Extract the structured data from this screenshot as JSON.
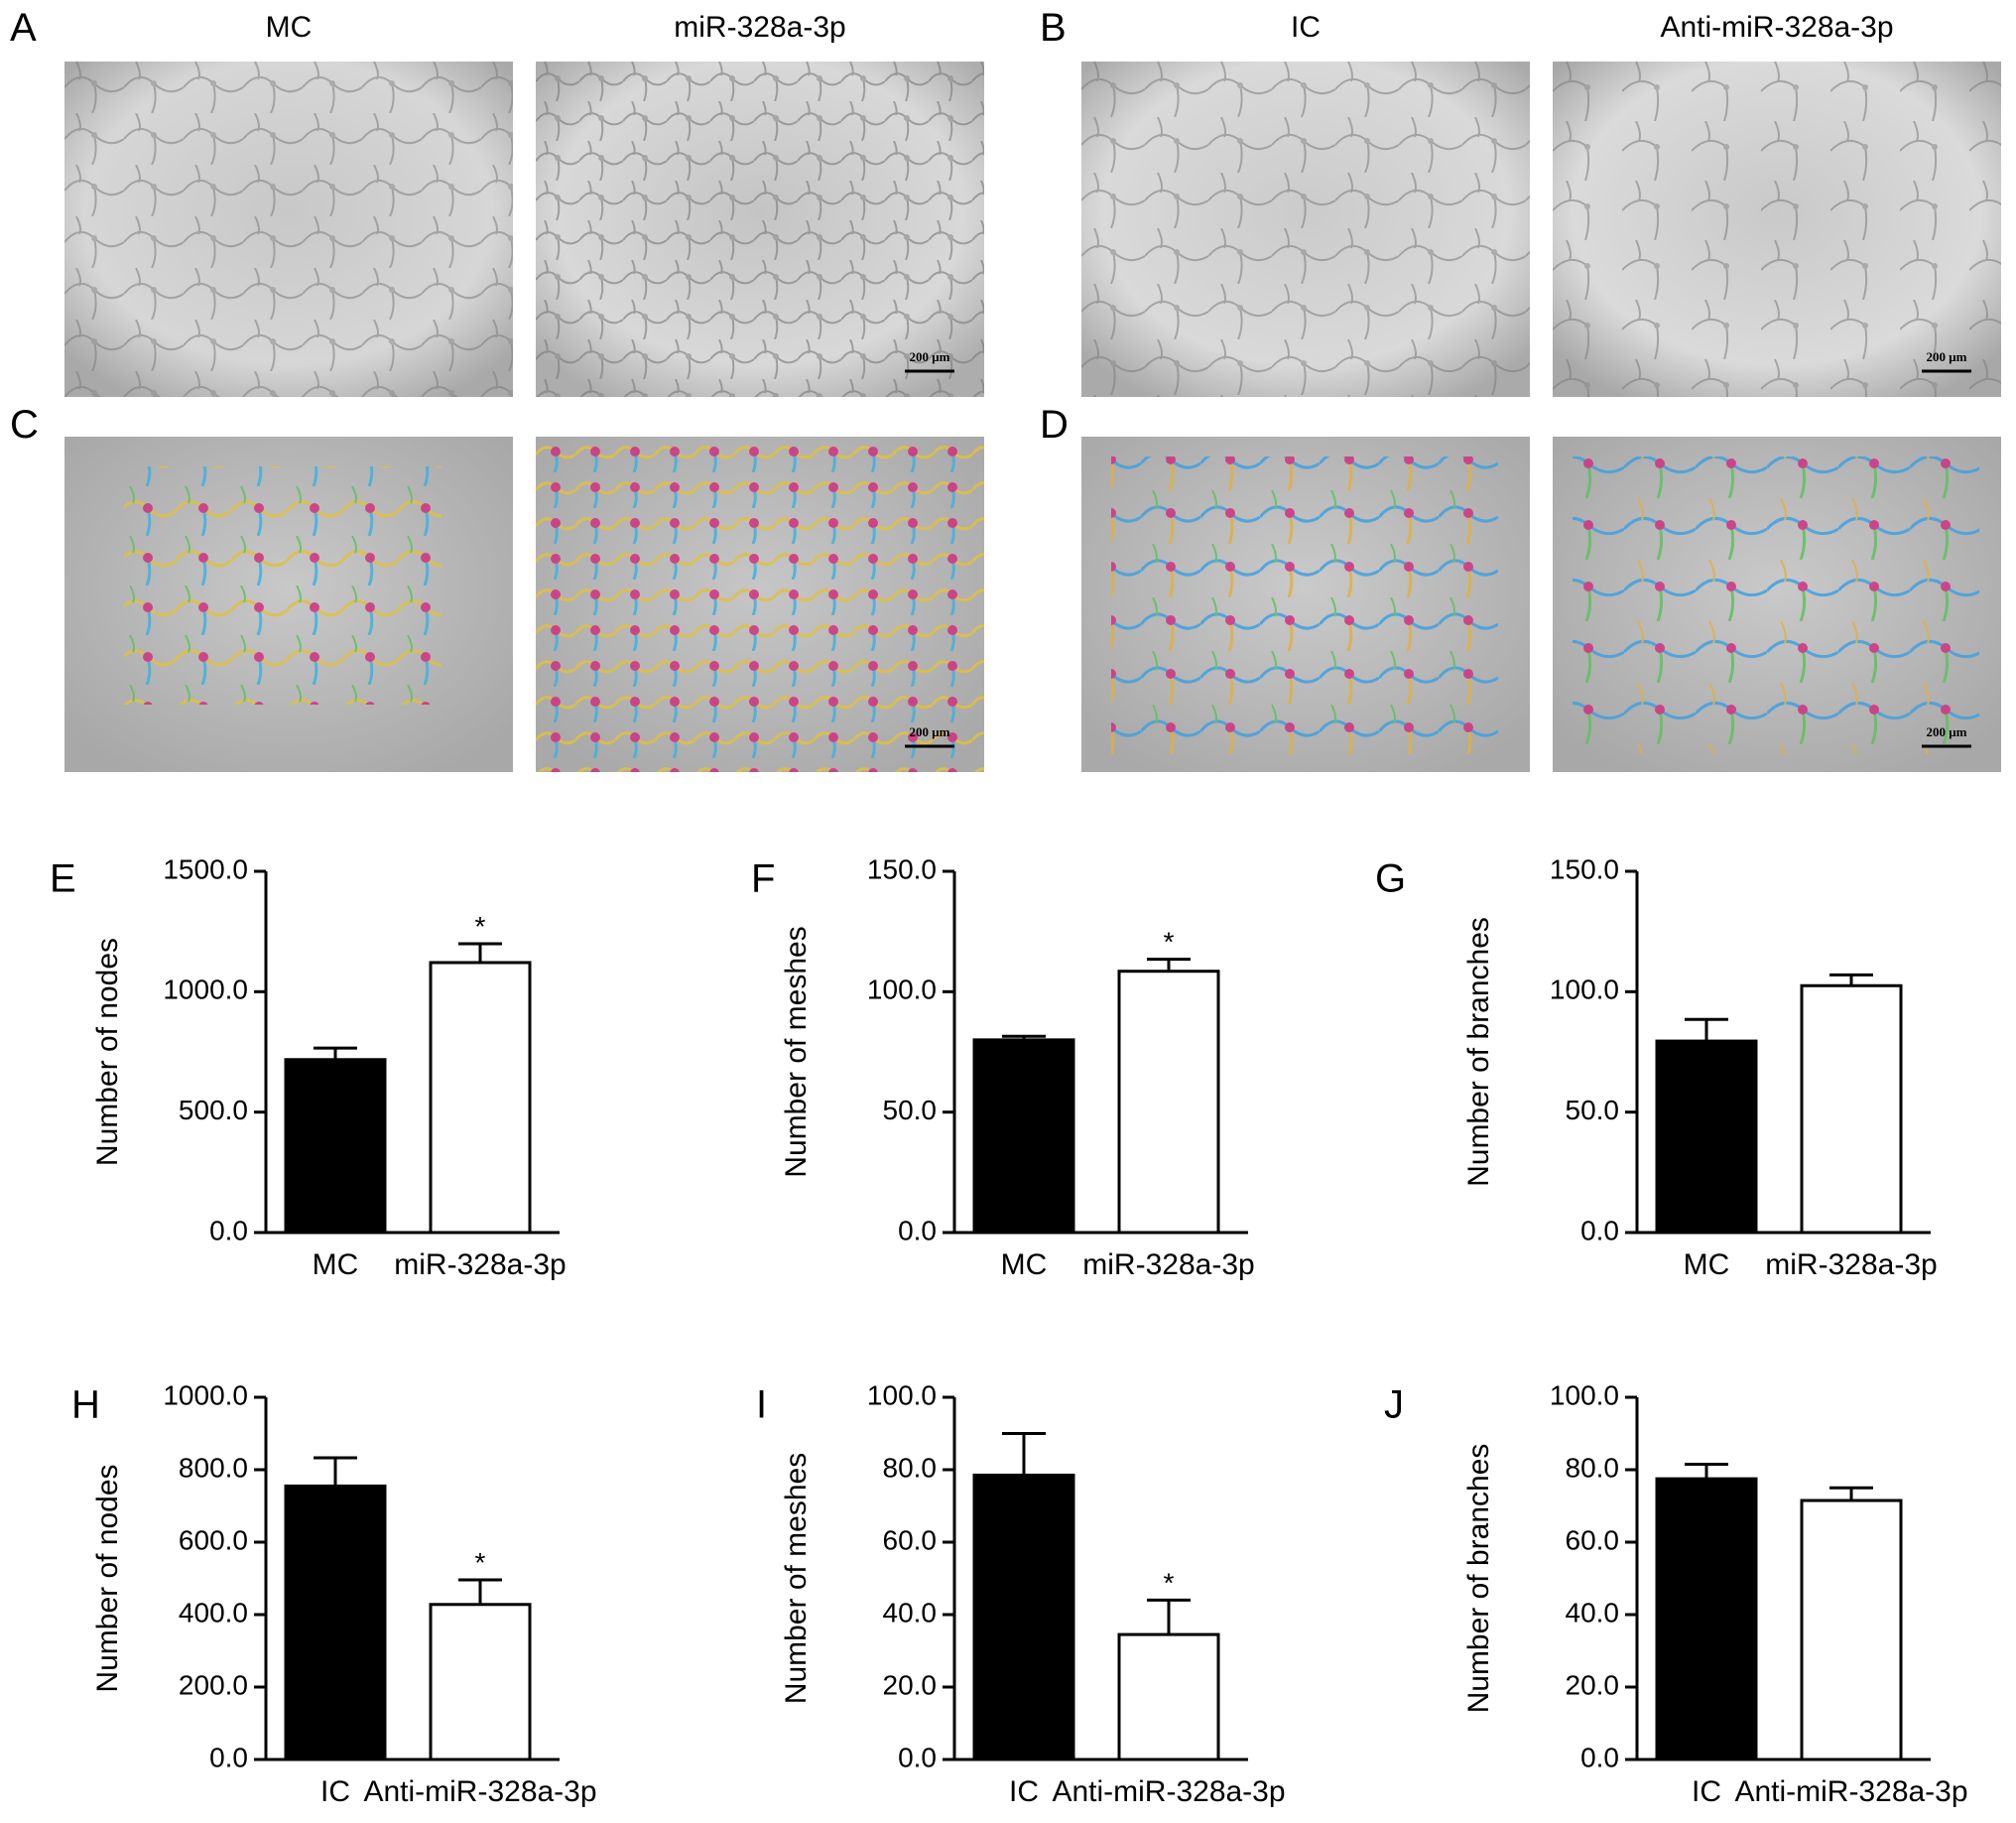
{
  "panel_letters": {
    "A": "A",
    "B": "B",
    "C": "C",
    "D": "D",
    "E": "E",
    "F": "F",
    "G": "G",
    "H": "H",
    "I": "I",
    "J": "J"
  },
  "image_columns": {
    "A": [
      "MC",
      "miR-328a-3p"
    ],
    "B": [
      "IC",
      "Anti-miR-328a-3p"
    ]
  },
  "scale_bar_text": "200 μm",
  "colors": {
    "bar_fill_first": "#000000",
    "bar_fill_second": "#ffffff",
    "edge": "#000000"
  },
  "chart_data": [
    {
      "panel": "E",
      "type": "bar",
      "categories": [
        "MC",
        "miR-328a-3p"
      ],
      "values": [
        718,
        1121
      ],
      "errors": [
        48,
        78
      ],
      "significance": [
        "",
        "*"
      ],
      "ylabel": "Number of nodes",
      "ylim": [
        0,
        1500
      ],
      "yticks": [
        "0.0",
        "500.0",
        "1000.0",
        "1500.0"
      ]
    },
    {
      "panel": "F",
      "type": "bar",
      "categories": [
        "MC",
        "miR-328a-3p"
      ],
      "values": [
        80,
        108.5
      ],
      "errors": [
        1.5,
        5
      ],
      "significance": [
        "",
        "*"
      ],
      "ylabel": "Number of meshes",
      "ylim": [
        0,
        150
      ],
      "yticks": [
        "0.0",
        "50.0",
        "100.0",
        "150.0"
      ]
    },
    {
      "panel": "G",
      "type": "bar",
      "categories": [
        "MC",
        "miR-328a-3p"
      ],
      "values": [
        79.5,
        102.5
      ],
      "errors": [
        9,
        4.5
      ],
      "significance": [
        "",
        ""
      ],
      "ylabel": "Number of branches",
      "ylim": [
        0,
        150
      ],
      "yticks": [
        "0.0",
        "50.0",
        "100.0",
        "150.0"
      ]
    },
    {
      "panel": "H",
      "type": "bar",
      "categories": [
        "IC",
        "Anti-miR-328a-3p"
      ],
      "values": [
        755,
        428
      ],
      "errors": [
        78,
        68
      ],
      "significance": [
        "",
        "*"
      ],
      "ylabel": "Number of nodes",
      "ylim": [
        0,
        1000
      ],
      "yticks": [
        "0.0",
        "200.0",
        "400.0",
        "600.0",
        "800.0",
        "1000.0"
      ]
    },
    {
      "panel": "I",
      "type": "bar",
      "categories": [
        "IC",
        "Anti-miR-328a-3p"
      ],
      "values": [
        78.5,
        34.5
      ],
      "errors": [
        11.5,
        9.5
      ],
      "significance": [
        "",
        "*"
      ],
      "ylabel": "Number of meshes",
      "ylim": [
        0,
        100
      ],
      "yticks": [
        "0.0",
        "20.0",
        "40.0",
        "60.0",
        "80.0",
        "100.0"
      ]
    },
    {
      "panel": "J",
      "type": "bar",
      "categories": [
        "IC",
        "Anti-miR-328a-3p"
      ],
      "values": [
        77.5,
        71.5
      ],
      "errors": [
        4,
        3.5
      ],
      "significance": [
        "",
        ""
      ],
      "ylabel": "Number of branches",
      "ylim": [
        0,
        100
      ],
      "yticks": [
        "0.0",
        "20.0",
        "40.0",
        "60.0",
        "80.0",
        "100.0"
      ]
    }
  ]
}
